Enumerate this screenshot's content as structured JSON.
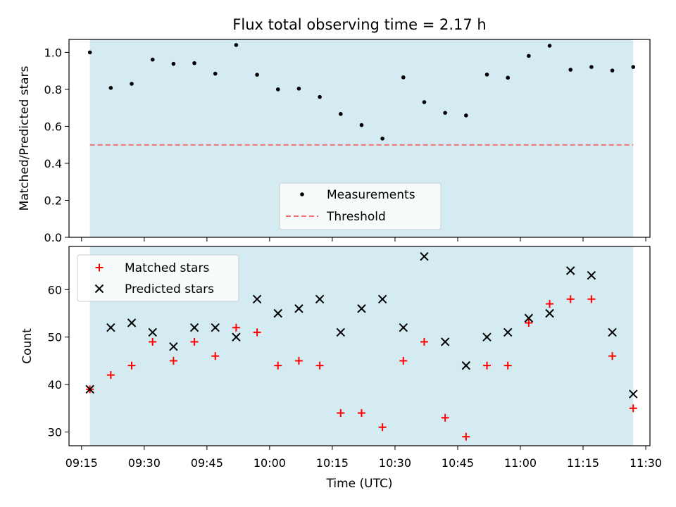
{
  "chart_data": [
    {
      "type": "scatter",
      "title": "Flux total observing time = 2.17 h",
      "xlabel": "",
      "ylabel": "Matched/Predicted stars",
      "xlim": [
        "09:12",
        "11:31"
      ],
      "ylim": [
        0,
        1.07
      ],
      "yticks": [
        0.0,
        0.2,
        0.4,
        0.6,
        0.8,
        1.0
      ],
      "ytick_labels": [
        "0.0",
        "0.2",
        "0.4",
        "0.6",
        "0.8",
        "1.0"
      ],
      "shaded_span": [
        "09:17",
        "11:27"
      ],
      "shade_color": "#d4ebf1",
      "threshold": 0.5,
      "threshold_color": "#f07070",
      "legend": {
        "position": "lower-center",
        "entries": [
          "Measurements",
          "Threshold"
        ]
      },
      "series": [
        {
          "name": "Measurements",
          "marker": "dot",
          "color": "#000000",
          "x": [
            "09:17",
            "09:22",
            "09:27",
            "09:32",
            "09:37",
            "09:42",
            "09:47",
            "09:52",
            "09:57",
            "10:02",
            "10:07",
            "10:12",
            "10:17",
            "10:22",
            "10:27",
            "10:32",
            "10:37",
            "10:42",
            "10:47",
            "10:52",
            "10:57",
            "11:02",
            "11:07",
            "11:12",
            "11:17",
            "11:22",
            "11:27"
          ],
          "y": [
            1.0,
            0.808,
            0.83,
            0.961,
            0.938,
            0.942,
            0.885,
            1.04,
            0.879,
            0.8,
            0.804,
            0.759,
            0.667,
            0.607,
            0.534,
            0.865,
            0.731,
            0.673,
            0.659,
            0.88,
            0.863,
            0.981,
            1.036,
            0.906,
            0.921,
            0.902,
            0.921
          ]
        }
      ]
    },
    {
      "type": "scatter",
      "title": "",
      "xlabel": "Time (UTC)",
      "ylabel": "Count",
      "xlim": [
        "09:12",
        "11:31"
      ],
      "ylim": [
        27.1,
        69.1
      ],
      "yticks": [
        30,
        40,
        50,
        60
      ],
      "ytick_labels": [
        "30",
        "40",
        "50",
        "60"
      ],
      "xticks": [
        "09:15",
        "09:30",
        "09:45",
        "10:00",
        "10:15",
        "10:30",
        "10:45",
        "11:00",
        "11:15",
        "11:30"
      ],
      "xtick_labels": [
        "09:15",
        "09:30",
        "09:45",
        "10:00",
        "10:15",
        "10:30",
        "10:45",
        "11:00",
        "11:15",
        "11:30"
      ],
      "shaded_span": [
        "09:17",
        "11:27"
      ],
      "shade_color": "#d4ebf1",
      "legend": {
        "position": "top-left",
        "entries": [
          "Matched stars",
          "Predicted stars"
        ]
      },
      "series": [
        {
          "name": "Matched stars",
          "marker": "plus",
          "color": "#ff0000",
          "x": [
            "09:17",
            "09:22",
            "09:27",
            "09:32",
            "09:37",
            "09:42",
            "09:47",
            "09:52",
            "09:57",
            "10:02",
            "10:07",
            "10:12",
            "10:17",
            "10:22",
            "10:27",
            "10:32",
            "10:37",
            "10:42",
            "10:47",
            "10:52",
            "10:57",
            "11:02",
            "11:07",
            "11:12",
            "11:17",
            "11:22",
            "11:27"
          ],
          "y": [
            39,
            42,
            44,
            49,
            45,
            49,
            46,
            52,
            51,
            44,
            45,
            44,
            34,
            34,
            31,
            45,
            49,
            33,
            29,
            44,
            44,
            53,
            57,
            58,
            58,
            46,
            35
          ]
        },
        {
          "name": "Predicted stars",
          "marker": "x",
          "color": "#000000",
          "x": [
            "09:17",
            "09:22",
            "09:27",
            "09:32",
            "09:37",
            "09:42",
            "09:47",
            "09:52",
            "09:57",
            "10:02",
            "10:07",
            "10:12",
            "10:17",
            "10:22",
            "10:27",
            "10:32",
            "10:37",
            "10:42",
            "10:47",
            "10:52",
            "10:57",
            "11:02",
            "11:07",
            "11:12",
            "11:17",
            "11:22",
            "11:27"
          ],
          "y": [
            39,
            52,
            53,
            51,
            48,
            52,
            52,
            50,
            58,
            55,
            56,
            58,
            51,
            56,
            58,
            52,
            67,
            49,
            44,
            50,
            51,
            54,
            55,
            64,
            63,
            51,
            38
          ]
        }
      ]
    }
  ]
}
